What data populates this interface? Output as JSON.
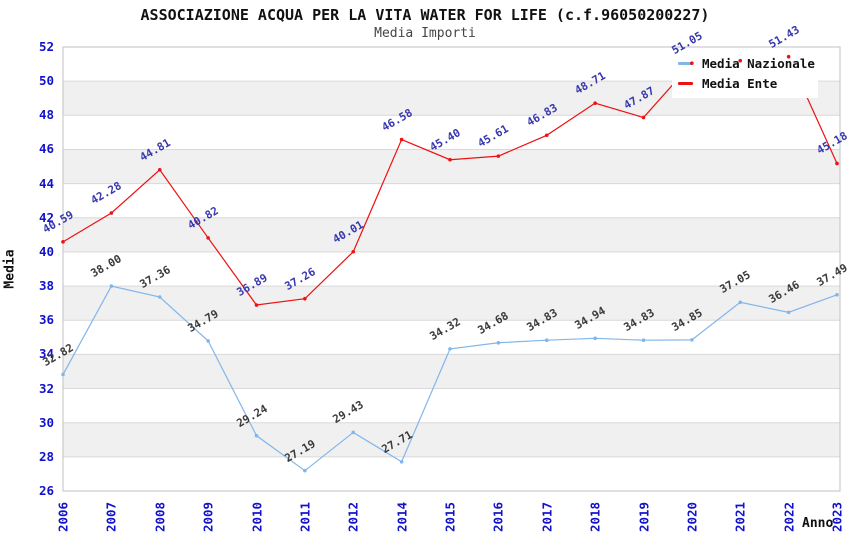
{
  "chart_data": {
    "type": "line",
    "title": "ASSOCIAZIONE ACQUA PER LA VITA WATER FOR LIFE (c.f.96050200227)",
    "subtitle": "Media Importi",
    "xlabel": "Anno",
    "ylabel": "Media",
    "ylim": [
      26,
      52
    ],
    "ytick_step": 2,
    "grid": "horizontal-only",
    "banded_background": true,
    "legend_position": "top-right",
    "categories": [
      "2006",
      "2007",
      "2008",
      "2009",
      "2010",
      "2011",
      "2012",
      "2014",
      "2015",
      "2016",
      "2017",
      "2018",
      "2019",
      "2020",
      "2021",
      "2022",
      "2023"
    ],
    "series": [
      {
        "name": "Media Nazionale",
        "color": "#82b6e9",
        "label_color": "#3a3a3a",
        "values": [
          32.82,
          38.0,
          37.36,
          34.79,
          29.24,
          27.19,
          29.43,
          27.71,
          34.32,
          34.68,
          34.83,
          34.94,
          34.83,
          34.85,
          37.05,
          36.46,
          37.49
        ],
        "labels": [
          "32.82",
          "38.00",
          "37.36",
          "34.79",
          "29.24",
          "27.19",
          "29.43",
          "27.71",
          "34.32",
          "34.68",
          "34.83",
          "34.94",
          "34.83",
          "34.85",
          "37.05",
          "36.46",
          "37.49"
        ]
      },
      {
        "name": "Media Ente",
        "color": "#ee1111",
        "label_color": "#3838ae",
        "values": [
          40.59,
          42.28,
          44.81,
          40.82,
          36.89,
          37.26,
          40.01,
          46.58,
          45.4,
          45.61,
          46.83,
          48.71,
          47.87,
          51.05,
          51.2,
          51.43,
          45.18
        ],
        "labels": [
          "40.59",
          "42.28",
          "44.81",
          "40.82",
          "36.89",
          "37.26",
          "40.01",
          "46.58",
          "45.40",
          "45.61",
          "46.83",
          "48.71",
          "47.87",
          "51.05",
          "",
          "51.43",
          "45.18"
        ]
      }
    ],
    "colors": {
      "tick_label": "#1212cc",
      "band": "#f0f0f0",
      "gridline": "#d9d9d9",
      "plot_border": "#c2c2c2",
      "legend_background": "#ffffff"
    }
  }
}
